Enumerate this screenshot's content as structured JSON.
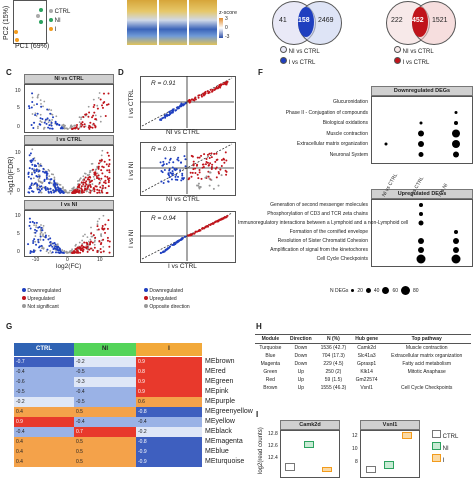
{
  "panels": {
    "C": "C",
    "D": "D",
    "F": "F",
    "G": "G",
    "H": "H",
    "I": "I"
  },
  "pca": {
    "xlabel": "PC1 (69%)",
    "ylabel": "PC2 (15%)",
    "legend": [
      {
        "label": "CTRL",
        "color": "#aaaaaa"
      },
      {
        "label": "NI",
        "color": "#2ca25f"
      },
      {
        "label": "I",
        "color": "#f29b1c"
      }
    ]
  },
  "zscore": {
    "title": "z-score",
    "ticks": [
      "3",
      "0",
      "-3"
    ]
  },
  "venn1": {
    "left": "41",
    "center": "158",
    "right": "2469",
    "legend": [
      "NI vs CTRL",
      "I vs CTRL"
    ]
  },
  "venn2": {
    "left": "222",
    "center": "452",
    "right": "1521",
    "legend": [
      "NI vs CTRL",
      "I vs CTRL"
    ]
  },
  "volcano": {
    "strips": [
      "NI vs CTRL",
      "I vs CTRL",
      "I vs NI"
    ],
    "ylabel": "-log10(FDR)",
    "xlabel": "log2(FC)",
    "xticks": [
      "-10",
      "0",
      "10"
    ],
    "yticks": [
      [
        "10",
        "5",
        "0"
      ],
      [
        "10",
        "5",
        "0"
      ],
      [
        "10",
        "5",
        "0"
      ]
    ],
    "legend": [
      {
        "label": "Downregulated",
        "color": "#1f3fbf"
      },
      {
        "label": "Upregulated",
        "color": "#c0141b"
      },
      {
        "label": "Not significant",
        "color": "#999999"
      }
    ]
  },
  "scatter": {
    "plots": [
      {
        "r": "R = 0.91",
        "ylabel": "I vs CTRL",
        "xlabel": "NI vs CTRL"
      },
      {
        "r": "R = 0.13",
        "ylabel": "I vs NI",
        "xlabel": "NI vs CTRL"
      },
      {
        "r": "R = 0.94",
        "ylabel": "I vs NI",
        "xlabel": "I vs CTRL"
      }
    ],
    "legend": [
      {
        "label": "Downregulated",
        "color": "#1f3fbf"
      },
      {
        "label": "Upregulated",
        "color": "#c0141b"
      },
      {
        "label": "Opposite direction",
        "color": "#999999"
      }
    ]
  },
  "dotplot": {
    "down_title": "Downregulated DEGs",
    "up_title": "Upregulated DEGs",
    "columns": [
      "NI vs CTRL",
      "I vs CTRL",
      "I vs NI"
    ],
    "down_terms": [
      "Glucuronidation",
      "Phase II - Conjugation of compounds",
      "Biological oxidations",
      "Muscle contraction",
      "Extracellular matrix organization",
      "Neuronal System"
    ],
    "up_terms": [
      "Generation of second messenger molecules",
      "Phosphorylation of CD3 and TCR zeta chains",
      "Immunoregulatory interactions between a Lymphoid and a non-Lymphoid cell",
      "Formation of the cornified envelope",
      "Resolution of Sister Chromatid Cohesion",
      "Amplification of signal from the kinetochores",
      "Cell Cycle Checkpoints"
    ],
    "size_legend": {
      "title": "N DEGs",
      "values": [
        "20",
        "40",
        "60",
        "80"
      ]
    }
  },
  "heatmap": {
    "columns": [
      {
        "label": "CTRL",
        "color": "#2f63b4"
      },
      {
        "label": "NI",
        "color": "#54d45a"
      },
      {
        "label": "I",
        "color": "#f2a93a"
      }
    ],
    "modules": [
      "MEbrown",
      "MEred",
      "MEgreen",
      "MEpink",
      "MEpurple",
      "MEgreenyellow",
      "MEyellow",
      "MEblack",
      "MEmagenta",
      "MEblue",
      "MEturquoise"
    ],
    "values": [
      [
        "-0.7",
        "-0.2",
        "0.9"
      ],
      [
        "-0.4",
        "-0.5",
        "0.8"
      ],
      [
        "-0.6",
        "-0.3",
        "0.9"
      ],
      [
        "-0.5",
        "-0.4",
        "0.9"
      ],
      [
        "-0.2",
        "-0.5",
        "0.6"
      ],
      [
        "0.4",
        "0.5",
        "-0.8"
      ],
      [
        "0.9",
        "-0.4",
        "-0.4"
      ],
      [
        "-0.4",
        "0.7",
        "-0.2"
      ],
      [
        "0.4",
        "0.5",
        "-0.8"
      ],
      [
        "0.4",
        "0.5",
        "-0.9"
      ],
      [
        "0.4",
        "0.5",
        "-0.9"
      ]
    ]
  },
  "table": {
    "headers": [
      "Module",
      "Direction",
      "N (%)",
      "Hub gene",
      "Top pathway"
    ],
    "rows": [
      [
        "Turquoise",
        "Down",
        "1536 (42.7)",
        "Camk2d",
        "Muscle contraction"
      ],
      [
        "Blue",
        "Down",
        "704 (17.3)",
        "Slc41a3",
        "Extracellular matrix organization"
      ],
      [
        "Magenta",
        "Down",
        "229 (4.5)",
        "Gprasp1",
        "Fatty acid metabolism"
      ],
      [
        "Green",
        "Up",
        "250 (2)",
        "Klk14",
        "Mitotic Anaphase"
      ],
      [
        "Red",
        "Up",
        "59 (1.5)",
        "Gm22574",
        ""
      ],
      [
        "Brown",
        "Up",
        "1555 (46.3)",
        "Vsnl1",
        "Cell Cycle Checkpoints"
      ]
    ]
  },
  "boxplots": {
    "ylabel": "log2(read counts)",
    "genes": [
      "Camk2d",
      "Vsnl1"
    ],
    "yticks1": [
      "12.8",
      "12.6",
      "12.4"
    ],
    "yticks2": [
      "12",
      "10",
      "8"
    ],
    "legend": [
      {
        "label": "CTRL",
        "color": "#777777"
      },
      {
        "label": "NI",
        "color": "#2ca25f"
      },
      {
        "label": "I",
        "color": "#f29b1c"
      }
    ]
  }
}
